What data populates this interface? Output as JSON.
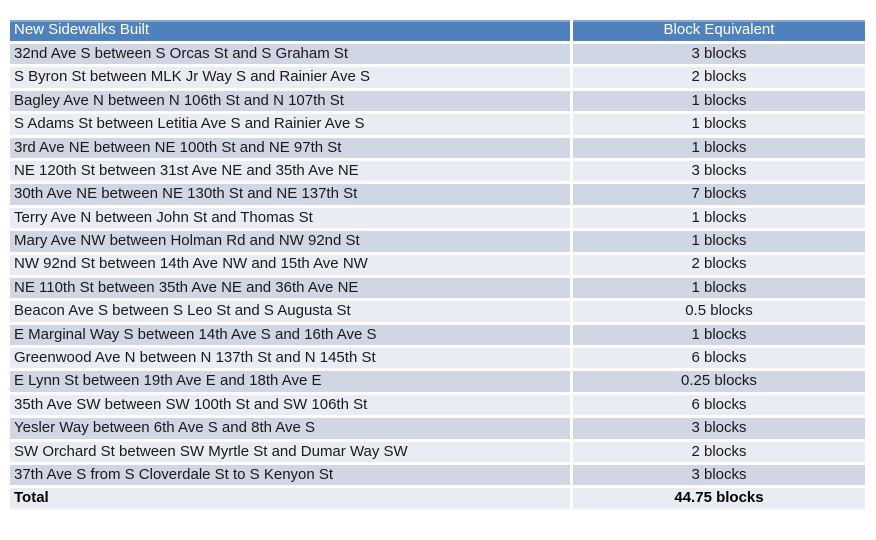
{
  "colors": {
    "header_bg": "#4F81BD",
    "header_text": "#FFFFFF",
    "band_dark": "#D0D6E4",
    "band_light": "#E9ECF3",
    "body_text": "#1A1A1A"
  },
  "chart_data": {
    "type": "table",
    "title": "New Sidewalks Built",
    "columns": [
      "New Sidewalks Built",
      "Block Equivalent"
    ],
    "rows": [
      [
        "32nd Ave S between S Orcas St and S Graham St",
        "3 blocks"
      ],
      [
        "S Byron St between MLK Jr Way S and Rainier Ave S",
        "2 blocks"
      ],
      [
        "Bagley Ave N between N 106th St and N 107th St",
        "1 blocks"
      ],
      [
        "S Adams St between Letitia Ave S and Rainier Ave S",
        "1 blocks"
      ],
      [
        "3rd Ave NE between NE 100th St and NE 97th St",
        "1 blocks"
      ],
      [
        "NE 120th St between 31st Ave NE and 35th Ave NE",
        "3 blocks"
      ],
      [
        "30th Ave NE between NE 130th St and NE 137th St",
        "7 blocks"
      ],
      [
        "Terry Ave N between John St and Thomas St",
        "1 blocks"
      ],
      [
        "Mary Ave NW between Holman Rd and NW 92nd St",
        "1 blocks"
      ],
      [
        "NW 92nd St between 14th Ave NW and 15th Ave NW",
        "2 blocks"
      ],
      [
        "NE 110th St between 35th Ave NE and 36th Ave NE",
        "1 blocks"
      ],
      [
        "Beacon Ave S between S Leo St and S Augusta St",
        "0.5 blocks"
      ],
      [
        "E Marginal Way S between 14th Ave S and 16th Ave S",
        "1 blocks"
      ],
      [
        "Greenwood Ave N between N 137th St and N 145th St",
        "6 blocks"
      ],
      [
        "E Lynn St between 19th Ave E and 18th Ave E",
        "0.25 blocks"
      ],
      [
        "35th Ave SW between SW 100th St and SW 106th St",
        "6 blocks"
      ],
      [
        "Yesler Way between 6th Ave S and 8th Ave S",
        "3 blocks"
      ],
      [
        "SW Orchard St between SW Myrtle St and Dumar Way SW",
        "2 blocks"
      ],
      [
        "37th Ave S from S Cloverdale St to S Kenyon St",
        "3 blocks"
      ]
    ],
    "total_row": [
      "Total",
      "44.75 blocks"
    ],
    "values_numeric": [
      3,
      2,
      1,
      1,
      1,
      3,
      7,
      1,
      1,
      2,
      1,
      0.5,
      1,
      6,
      0.25,
      6,
      3,
      2,
      3
    ],
    "total_numeric": 44.75,
    "value_unit": "blocks"
  }
}
